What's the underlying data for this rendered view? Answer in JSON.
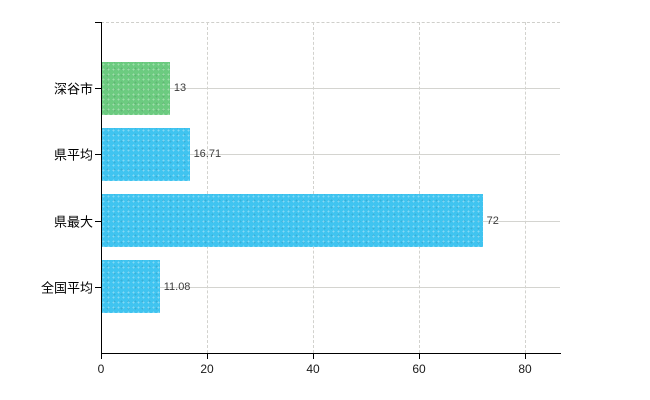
{
  "chart_data": {
    "type": "bar",
    "orientation": "horizontal",
    "title": "",
    "xlabel": "",
    "ylabel": "",
    "categories": [
      "深谷市",
      "県平均",
      "県最大",
      "全国平均"
    ],
    "values": [
      13,
      16.71,
      72,
      11.08
    ],
    "value_labels": [
      "13",
      "16.71",
      "72",
      "11.08"
    ],
    "series": [
      {
        "name": "values",
        "values": [
          13,
          16.71,
          72,
          11.08
        ],
        "colors": [
          "#6ccb80",
          "#40c4f0",
          "#40c4f0",
          "#40c4f0"
        ]
      }
    ],
    "x_ticks": [
      0,
      20,
      40,
      60,
      80
    ],
    "x_tick_labels": [
      "0",
      "20",
      "40",
      "60",
      "80"
    ],
    "xlim": [
      0,
      86.8
    ],
    "grid": {
      "vertical": "dashed",
      "horizontal_at_category_centers": "solid",
      "top_boundary": "dashed",
      "legend": "none"
    }
  },
  "colors": {
    "bar_highlight": "#6ccb80",
    "bar_default": "#40c4f0",
    "grid": "#d2d2ce",
    "axis": "#000000",
    "value_label": "#3c3c3c",
    "tick_label": "#1a1a1a"
  }
}
